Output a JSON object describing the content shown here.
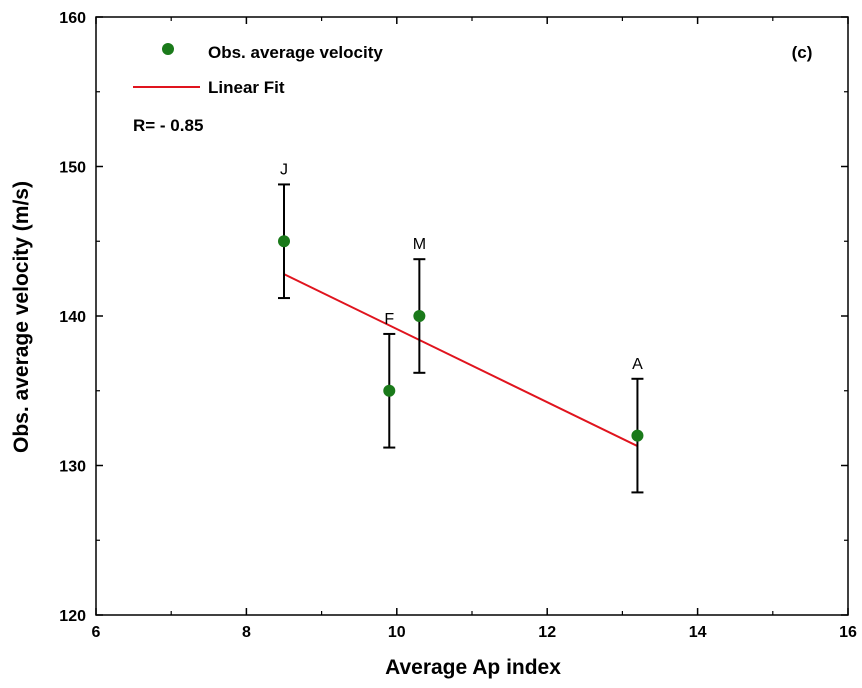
{
  "chart_data": {
    "type": "scatter",
    "xlabel": "Average Ap index",
    "ylabel": "Obs. average velocity (m/s)",
    "xlim": [
      6,
      16
    ],
    "ylim": [
      120,
      160
    ],
    "x_major_ticks": [
      6,
      8,
      10,
      12,
      14,
      16
    ],
    "y_major_ticks": [
      120,
      130,
      140,
      150,
      160
    ],
    "x_tick_labels": [
      "6",
      "8",
      "10",
      "12",
      "14",
      "16"
    ],
    "y_tick_labels": [
      "120",
      "130",
      "140",
      "150",
      "160"
    ],
    "panel_label": "(c)",
    "annotation": "R= - 0.85",
    "grid": false,
    "legend_position": "top-left",
    "legend": [
      {
        "label": "Obs. average velocity",
        "kind": "marker",
        "color": "#1a7a1a"
      },
      {
        "label": "Linear Fit",
        "kind": "line",
        "color": "#e0141e"
      }
    ],
    "series": [
      {
        "name": "Obs. average velocity",
        "color": "#1a7a1a",
        "points": [
          {
            "label": "J",
            "x": 8.5,
            "y": 145,
            "err": 3.8
          },
          {
            "label": "F",
            "x": 9.9,
            "y": 135,
            "err": 3.8
          },
          {
            "label": "M",
            "x": 10.3,
            "y": 140,
            "err": 3.8
          },
          {
            "label": "A",
            "x": 13.2,
            "y": 132,
            "err": 3.8
          }
        ]
      },
      {
        "name": "Linear Fit",
        "color": "#e0141e",
        "x": [
          8.5,
          13.2
        ],
        "y": [
          142.8,
          131.3
        ]
      }
    ]
  }
}
